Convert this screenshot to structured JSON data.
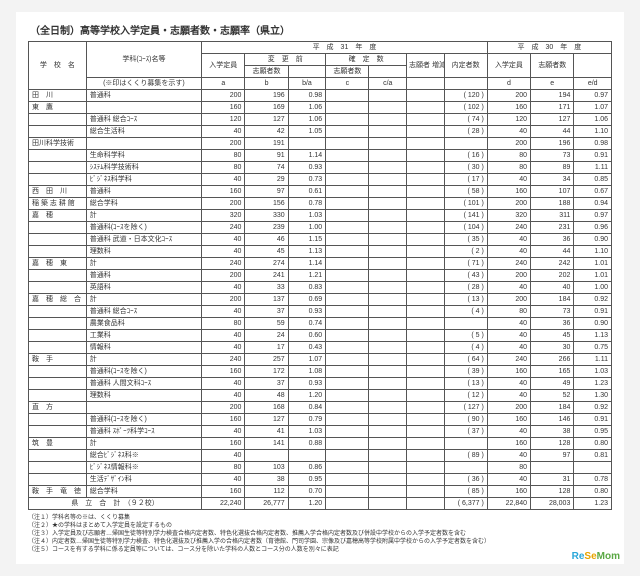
{
  "title": "（全日制）高等学校入学定員・志願者数・志願率（県立）",
  "head": {
    "school": "学　校　名",
    "course": "学科(ｺｰｽ)名等",
    "courseNote": "(※印はくくり募集を示す)",
    "h31": "平　成　31　年　度",
    "capacity": "入学定員",
    "before": "変　更　前",
    "fixed": "確　定　数",
    "appB": "志願者数",
    "appC": "志願者数",
    "appDelta": "志願者\n増減数",
    "naitei": "内定者数",
    "h30": "平　成　30　年　度",
    "h30Cap": "入学定員",
    "h30App": "志願者数",
    "a": "a",
    "b": "b",
    "ba": "b/a",
    "c": "c",
    "ca": "c/a",
    "d": "d",
    "e": "e",
    "ed": "e/d"
  },
  "rows": [
    {
      "sch": "田　川",
      "crs": "普通科",
      "a": "200",
      "b": "196",
      "ba": "0.98",
      "c": "",
      "ca": "",
      "dl": "",
      "nt": "(  120 )",
      "d": "200",
      "e": "194",
      "ed": "0.97"
    },
    {
      "sch": "東　鷹",
      "crs": "",
      "a": "160",
      "b": "169",
      "ba": "1.06",
      "c": "",
      "ca": "",
      "dl": "",
      "nt": "(  102 )",
      "d": "160",
      "e": "171",
      "ed": "1.07"
    },
    {
      "sch": "",
      "crs": "普通科 総合ｺｰｽ",
      "a": "120",
      "b": "127",
      "ba": "1.06",
      "c": "",
      "ca": "",
      "dl": "",
      "nt": "(    74 )",
      "d": "120",
      "e": "127",
      "ed": "1.06"
    },
    {
      "sch": "",
      "crs": "総合生活科",
      "a": "40",
      "b": "42",
      "ba": "1.05",
      "c": "",
      "ca": "",
      "dl": "",
      "nt": "(    28 )",
      "d": "40",
      "e": "44",
      "ed": "1.10"
    },
    {
      "sch": "田川科学技術",
      "crs": "",
      "a": "200",
      "b": "191",
      "ba": "",
      "c": "",
      "ca": "",
      "dl": "",
      "nt": "",
      "d": "200",
      "e": "196",
      "ed": "0.98"
    },
    {
      "sch": "",
      "crs": "生命科学科",
      "a": "80",
      "b": "91",
      "ba": "1.14",
      "c": "",
      "ca": "",
      "dl": "",
      "nt": "(    16 )",
      "d": "80",
      "e": "73",
      "ed": "0.91"
    },
    {
      "sch": "",
      "crs": "ｼｽﾃﾑ科学技術科",
      "a": "80",
      "b": "74",
      "ba": "0.93",
      "c": "",
      "ca": "",
      "dl": "",
      "nt": "(    30 )",
      "d": "80",
      "e": "89",
      "ed": "1.11"
    },
    {
      "sch": "",
      "crs": "ﾋﾞｼﾞﾈｽ科学科",
      "a": "40",
      "b": "29",
      "ba": "0.73",
      "c": "",
      "ca": "",
      "dl": "",
      "nt": "(    17 )",
      "d": "40",
      "e": "34",
      "ed": "0.85"
    },
    {
      "sch": "西　田　川",
      "crs": "普通科",
      "a": "160",
      "b": "97",
      "ba": "0.61",
      "c": "",
      "ca": "",
      "dl": "",
      "nt": "(    58 )",
      "d": "160",
      "e": "107",
      "ed": "0.67"
    },
    {
      "sch": "稲 築 志 耕 館",
      "crs": "総合学科",
      "a": "200",
      "b": "156",
      "ba": "0.78",
      "c": "",
      "ca": "",
      "dl": "",
      "nt": "(  101 )",
      "d": "200",
      "e": "188",
      "ed": "0.94"
    },
    {
      "sch": "嘉　穂",
      "crs": "計",
      "a": "320",
      "b": "330",
      "ba": "1.03",
      "c": "",
      "ca": "",
      "dl": "",
      "nt": "(  141 )",
      "d": "320",
      "e": "311",
      "ed": "0.97"
    },
    {
      "sch": "",
      "crs": "普通科(ｺｰｽを除く)",
      "a": "240",
      "b": "239",
      "ba": "1.00",
      "c": "",
      "ca": "",
      "dl": "",
      "nt": "(  104 )",
      "d": "240",
      "e": "231",
      "ed": "0.96"
    },
    {
      "sch": "",
      "crs": "普通科 武道・日本文化ｺｰｽ",
      "a": "40",
      "b": "46",
      "ba": "1.15",
      "c": "",
      "ca": "",
      "dl": "",
      "nt": "(    35 )",
      "d": "40",
      "e": "36",
      "ed": "0.90"
    },
    {
      "sch": "",
      "crs": "理数科",
      "a": "40",
      "b": "45",
      "ba": "1.13",
      "c": "",
      "ca": "",
      "dl": "",
      "nt": "(      2 )",
      "d": "40",
      "e": "44",
      "ed": "1.10"
    },
    {
      "sch": "嘉　穂　東",
      "crs": "計",
      "a": "240",
      "b": "274",
      "ba": "1.14",
      "c": "",
      "ca": "",
      "dl": "",
      "nt": "(    71 )",
      "d": "240",
      "e": "242",
      "ed": "1.01"
    },
    {
      "sch": "",
      "crs": "普通科",
      "a": "200",
      "b": "241",
      "ba": "1.21",
      "c": "",
      "ca": "",
      "dl": "",
      "nt": "(    43 )",
      "d": "200",
      "e": "202",
      "ed": "1.01"
    },
    {
      "sch": "",
      "crs": "英語科",
      "a": "40",
      "b": "33",
      "ba": "0.83",
      "c": "",
      "ca": "",
      "dl": "",
      "nt": "(    28 )",
      "d": "40",
      "e": "40",
      "ed": "1.00"
    },
    {
      "sch": "嘉　穂　総　合",
      "crs": "計",
      "a": "200",
      "b": "137",
      "ba": "0.69",
      "c": "",
      "ca": "",
      "dl": "",
      "nt": "(    13 )",
      "d": "200",
      "e": "184",
      "ed": "0.92"
    },
    {
      "sch": "",
      "crs": "普通科 総合ｺｰｽ",
      "a": "40",
      "b": "37",
      "ba": "0.93",
      "c": "",
      "ca": "",
      "dl": "",
      "nt": "(      4 )",
      "d": "80",
      "e": "73",
      "ed": "0.91"
    },
    {
      "sch": "",
      "crs": "農業食品科",
      "a": "80",
      "b": "59",
      "ba": "0.74",
      "c": "",
      "ca": "",
      "dl": "",
      "nt": "",
      "d": "40",
      "e": "36",
      "ed": "0.90"
    },
    {
      "sch": "",
      "crs": "工業科",
      "a": "40",
      "b": "24",
      "ba": "0.60",
      "c": "",
      "ca": "",
      "dl": "",
      "nt": "(      5 )",
      "d": "40",
      "e": "45",
      "ed": "1.13"
    },
    {
      "sch": "",
      "crs": "情報科",
      "a": "40",
      "b": "17",
      "ba": "0.43",
      "c": "",
      "ca": "",
      "dl": "",
      "nt": "(      4 )",
      "d": "40",
      "e": "30",
      "ed": "0.75"
    },
    {
      "sch": "鞍　手",
      "crs": "計",
      "a": "240",
      "b": "257",
      "ba": "1.07",
      "c": "",
      "ca": "",
      "dl": "",
      "nt": "(    64 )",
      "d": "240",
      "e": "266",
      "ed": "1.11"
    },
    {
      "sch": "",
      "crs": "普通科(ｺｰｽを除く)",
      "a": "160",
      "b": "172",
      "ba": "1.08",
      "c": "",
      "ca": "",
      "dl": "",
      "nt": "(    39 )",
      "d": "160",
      "e": "165",
      "ed": "1.03"
    },
    {
      "sch": "",
      "crs": "普通科 人間文科ｺｰｽ",
      "a": "40",
      "b": "37",
      "ba": "0.93",
      "c": "",
      "ca": "",
      "dl": "",
      "nt": "(    13 )",
      "d": "40",
      "e": "49",
      "ed": "1.23"
    },
    {
      "sch": "",
      "crs": "理数科",
      "a": "40",
      "b": "48",
      "ba": "1.20",
      "c": "",
      "ca": "",
      "dl": "",
      "nt": "(    12 )",
      "d": "40",
      "e": "52",
      "ed": "1.30"
    },
    {
      "sch": "直　方",
      "crs": "",
      "a": "200",
      "b": "168",
      "ba": "0.84",
      "c": "",
      "ca": "",
      "dl": "",
      "nt": "(  127 )",
      "d": "200",
      "e": "184",
      "ed": "0.92"
    },
    {
      "sch": "",
      "crs": "普通科(ｺｰｽを除く)",
      "a": "160",
      "b": "127",
      "ba": "0.79",
      "c": "",
      "ca": "",
      "dl": "",
      "nt": "(    90 )",
      "d": "160",
      "e": "146",
      "ed": "0.91"
    },
    {
      "sch": "",
      "crs": "普通科 ｽﾎﾟｰﾂ科学ｺｰｽ",
      "a": "40",
      "b": "41",
      "ba": "1.03",
      "c": "",
      "ca": "",
      "dl": "",
      "nt": "(    37 )",
      "d": "40",
      "e": "38",
      "ed": "0.95"
    },
    {
      "sch": "筑　豊",
      "crs": "計",
      "a": "160",
      "b": "141",
      "ba": "0.88",
      "c": "",
      "ca": "",
      "dl": "",
      "nt": "",
      "d": "160",
      "e": "128",
      "ed": "0.80"
    },
    {
      "sch": "",
      "crs": "総合ﾋﾞｼﾞﾈｽ科※",
      "a": "40",
      "b": "",
      "ba": "",
      "c": "",
      "ca": "",
      "dl": "",
      "nt": "(    89 )",
      "d": "40",
      "e": "97",
      "ed": "0.81"
    },
    {
      "sch": "",
      "crs": "ﾋﾞｼﾞﾈｽ情報科※",
      "a": "80",
      "b": "103",
      "ba": "0.86",
      "c": "",
      "ca": "",
      "dl": "",
      "nt": "",
      "d": "80",
      "e": "",
      "ed": ""
    },
    {
      "sch": "",
      "crs": "生活ﾃﾞｻﾞｲﾝ科",
      "a": "40",
      "b": "38",
      "ba": "0.95",
      "c": "",
      "ca": "",
      "dl": "",
      "nt": "(    36 )",
      "d": "40",
      "e": "31",
      "ed": "0.78"
    },
    {
      "sch": "鞍　手　竜　徳",
      "crs": "総合学科",
      "a": "160",
      "b": "112",
      "ba": "0.70",
      "c": "",
      "ca": "",
      "dl": "",
      "nt": "(    85 )",
      "d": "160",
      "e": "128",
      "ed": "0.80"
    }
  ],
  "grand": {
    "label": "県　立　合　計　（９２校）",
    "a": "22,240",
    "b": "26,777",
    "ba": "1.20",
    "c": "",
    "ca": "",
    "dl": "",
    "nt": "(  6,377 )",
    "d": "22,840",
    "e": "28,003",
    "ed": "1.23"
  },
  "notes": [
    "（注１）学科名等の※は、くくり募集",
    "（注２）★の学科はまとめて入学定員を設定するもの",
    "（注３）入学定員及び志願者…帰国生徒等特別学力検査合格内定者数、特色化選抜合格内定者数、推薦入学合格内定者数及び併設中学校からの入学予定者数を含む",
    "（注４）内定者数…帰国生徒等特別学力検査、特色化選抜及び推薦入学の合格内定者数（育徳館、門司学園、宗像及び嘉穂高等学校附属中学校からの入学予定者数を含む）",
    "（注５）コースを有する学科に係る定員等については、コース分を除いた学科の人数とコース分の人数を別々に表記"
  ],
  "logo": {
    "re": "Re",
    "se": "Se",
    "mom": "Mom"
  }
}
